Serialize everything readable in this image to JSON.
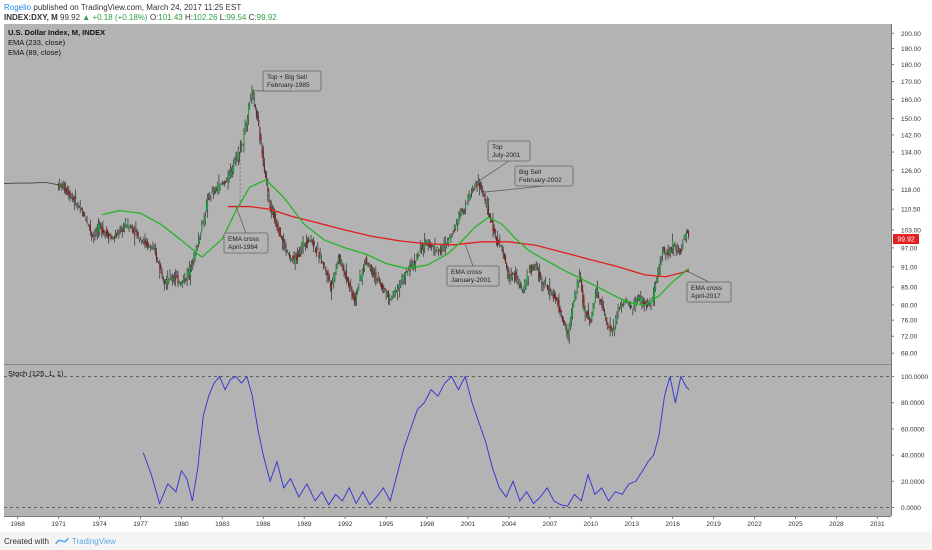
{
  "header": {
    "author": "Rogelio",
    "published": "published on TradingView.com, March 24, 2017 11:25 EST",
    "symbol_line": "INDEX:DXY, M",
    "last": "99.92",
    "change": "▲ +0.18 (+0.18%)",
    "o_label": "O:",
    "o_val": "101.43",
    "h_label": "H:",
    "h_val": "102.26",
    "l_label": "L:",
    "l_val": "99.54",
    "c_label": "C:",
    "c_val": "99.92"
  },
  "legend": {
    "title": "U.S. Dollar Index, M, INDEX",
    "ema1": "EMA (233, close)",
    "ema2": "EMA (89, close)",
    "stoch": "Stoch (125, 1, 1)"
  },
  "price_badge": "99.92",
  "footer": {
    "created": "Created with",
    "brand": "TradingView"
  },
  "colors": {
    "panel_bg": "#b3b3b3",
    "candle_up": "#1e9c3e",
    "candle_down": "#7a1d1d",
    "ema_233": "#e11f1f",
    "ema_89": "#27b427",
    "stoch": "#2f2fd6",
    "badge": "#e11f1f"
  },
  "annotations": [
    {
      "lines": [
        "Top + Big Sell",
        "February-1985"
      ]
    },
    {
      "lines": [
        "EMA cross",
        "April-1984"
      ]
    },
    {
      "lines": [
        "Top",
        "July-2001"
      ]
    },
    {
      "lines": [
        "Big Sell",
        "February-2002"
      ]
    },
    {
      "lines": [
        "EMA cross",
        "January-2001"
      ]
    },
    {
      "lines": [
        "EMA cross",
        "April-2017"
      ]
    }
  ],
  "chart_data": [
    {
      "type": "line",
      "title": "U.S. Dollar Index, M, INDEX",
      "scale": "log",
      "ylim": [
        66,
        205
      ],
      "xlim": [
        1967,
        2032
      ],
      "y_ticks": [
        68,
        72,
        76,
        80,
        85,
        91,
        97,
        103,
        110.5,
        118,
        126,
        134,
        142,
        150,
        160,
        170,
        180,
        190,
        200
      ],
      "y_tick_labels": [
        "68.00",
        "72.00",
        "76.00",
        "80.00",
        "85.00",
        "91.00",
        "97.00",
        "103.00",
        "110.50",
        "118.00",
        "126.00",
        "134.00",
        "142.00",
        "150.00",
        "160.00",
        "170.00",
        "180.00",
        "190.00",
        "200.00"
      ],
      "x_ticks": [
        1968,
        1971,
        1974,
        1977,
        1980,
        1983,
        1986,
        1989,
        1992,
        1995,
        1998,
        2001,
        2004,
        2007,
        2010,
        2013,
        2016,
        2019,
        2022,
        2025,
        2028,
        2031
      ],
      "series": [
        {
          "name": "INDEX:DXY",
          "x": [
            1967.0,
            1968.0,
            1969.0,
            1970.0,
            1971.0,
            1971.5,
            1972.0,
            1973.0,
            1973.5,
            1974.0,
            1975.0,
            1976.0,
            1976.5,
            1977.0,
            1978.0,
            1978.8,
            1979.5,
            1980.0,
            1980.5,
            1981.0,
            1981.7,
            1982.0,
            1982.7,
            1983.5,
            1984.0,
            1984.5,
            1985.15,
            1985.5,
            1986.0,
            1986.5,
            1987.0,
            1987.5,
            1988.0,
            1988.5,
            1989.0,
            1989.5,
            1990.0,
            1990.5,
            1991.0,
            1991.5,
            1992.0,
            1992.7,
            1993.0,
            1993.5,
            1994.0,
            1994.5,
            1995.3,
            1995.7,
            1996.0,
            1996.5,
            1997.0,
            1997.5,
            1998.0,
            1998.5,
            1999.0,
            1999.5,
            2000.0,
            2000.5,
            2000.9,
            2001.5,
            2001.7,
            2002.1,
            2002.5,
            2003.0,
            2003.5,
            2004.0,
            2004.5,
            2005.0,
            2005.5,
            2006.0,
            2006.5,
            2007.0,
            2007.5,
            2008.3,
            2008.6,
            2009.0,
            2009.2,
            2009.5,
            2010.0,
            2010.4,
            2010.8,
            2011.3,
            2011.7,
            2012.0,
            2012.5,
            2013.0,
            2013.5,
            2014.0,
            2014.5,
            2015.0,
            2015.3,
            2015.7,
            2016.0,
            2016.5,
            2016.9,
            2017.1,
            2017.2
          ],
          "values": [
            120.5,
            120.7,
            120.7,
            121.0,
            120.0,
            118.5,
            115.0,
            107.0,
            101.0,
            104.0,
            100.0,
            105.0,
            103.0,
            100.0,
            96.0,
            86.5,
            88.0,
            86.0,
            89.0,
            95.0,
            108.0,
            115.0,
            119.0,
            123.0,
            132.0,
            138.0,
            164.7,
            152.0,
            130.0,
            111.0,
            105.0,
            98.0,
            93.0,
            94.0,
            99.0,
            100.0,
            95.0,
            91.0,
            85.0,
            94.0,
            89.0,
            81.0,
            86.0,
            93.0,
            90.0,
            86.0,
            81.5,
            84.0,
            86.0,
            89.0,
            92.0,
            96.0,
            99.0,
            97.0,
            96.0,
            99.0,
            104.0,
            110.0,
            113.0,
            120.0,
            121.0,
            117.0,
            109.0,
            101.0,
            96.0,
            88.0,
            88.5,
            83.5,
            90.0,
            91.0,
            86.0,
            84.0,
            81.0,
            72.0,
            78.0,
            86.0,
            88.0,
            79.0,
            76.0,
            84.0,
            80.0,
            74.0,
            73.5,
            79.0,
            81.0,
            79.0,
            82.0,
            80.0,
            81.0,
            90.0,
            97.0,
            95.0,
            98.0,
            96.0,
            101.0,
            102.5,
            99.92
          ]
        },
        {
          "name": "EMA (233, close)",
          "x": [
            1983.4,
            1985.0,
            1986.5,
            1988.0,
            1990.0,
            1992.0,
            1994.0,
            1996.0,
            1998.0,
            2000.0,
            2002.0,
            2004.0,
            2006.0,
            2008.0,
            2010.0,
            2012.0,
            2014.0,
            2015.5,
            2017.2
          ],
          "values": [
            111.5,
            111.5,
            110.5,
            108.0,
            105.5,
            103.0,
            100.8,
            99.3,
            98.3,
            98.0,
            99.0,
            99.0,
            97.8,
            95.5,
            93.2,
            91.0,
            88.5,
            88.0,
            89.8
          ]
        },
        {
          "name": "EMA (89, close)",
          "x": [
            1974.2,
            1975.5,
            1977.0,
            1978.5,
            1980.0,
            1981.5,
            1983.0,
            1984.0,
            1985.0,
            1986.2,
            1987.5,
            1989.0,
            1990.5,
            1992.0,
            1993.5,
            1995.0,
            1996.5,
            1998.0,
            1999.5,
            2000.5,
            2001.5,
            2002.5,
            2003.5,
            2004.5,
            2005.5,
            2006.5,
            2008.0,
            2009.0,
            2010.0,
            2011.0,
            2012.0,
            2013.0,
            2014.0,
            2015.0,
            2016.0,
            2017.2
          ],
          "values": [
            108.5,
            110.0,
            109.0,
            105.0,
            99.5,
            94.0,
            100.0,
            110.0,
            119.0,
            122.0,
            115.0,
            105.0,
            99.5,
            97.0,
            95.0,
            92.0,
            90.5,
            91.5,
            95.0,
            99.0,
            104.0,
            107.5,
            105.0,
            100.0,
            96.0,
            93.5,
            90.0,
            88.0,
            86.0,
            84.0,
            82.0,
            80.5,
            80.0,
            82.5,
            86.5,
            90.5
          ]
        }
      ]
    },
    {
      "type": "line",
      "title": "Stoch (125, 1, 1)",
      "ylim": [
        -5,
        105
      ],
      "xlim": [
        1967,
        2032
      ],
      "y_ticks": [
        0,
        20,
        40,
        60,
        80,
        100
      ],
      "y_tick_labels": [
        "0.0000",
        "20.0000",
        "40.0000",
        "60.0000",
        "80.0000",
        "100.0000"
      ],
      "series": [
        {
          "name": "Stoch (125, 1, 1)",
          "x": [
            1977.2,
            1977.8,
            1978.4,
            1979.0,
            1979.6,
            1980.0,
            1980.4,
            1980.8,
            1981.2,
            1981.6,
            1982.0,
            1982.4,
            1982.8,
            1983.2,
            1983.6,
            1984.0,
            1984.4,
            1984.8,
            1985.2,
            1985.6,
            1986.0,
            1986.5,
            1987.0,
            1987.5,
            1988.0,
            1988.6,
            1989.2,
            1989.8,
            1990.3,
            1990.8,
            1991.3,
            1991.8,
            1992.3,
            1992.8,
            1993.3,
            1993.8,
            1994.3,
            1994.8,
            1995.3,
            1995.8,
            1996.3,
            1996.8,
            1997.3,
            1997.8,
            1998.3,
            1998.8,
            1999.3,
            1999.8,
            2000.3,
            2000.8,
            2001.3,
            2001.8,
            2002.3,
            2002.8,
            2003.3,
            2003.8,
            2004.3,
            2004.8,
            2005.3,
            2005.8,
            2006.3,
            2006.8,
            2007.3,
            2007.8,
            2008.3,
            2008.8,
            2009.3,
            2009.8,
            2010.3,
            2010.8,
            2011.3,
            2011.8,
            2012.3,
            2012.8,
            2013.3,
            2013.8,
            2014.2,
            2014.6,
            2015.0,
            2015.4,
            2015.8,
            2016.2,
            2016.6,
            2017.0,
            2017.2
          ],
          "values": [
            42,
            25,
            3,
            18,
            12,
            28,
            22,
            5,
            30,
            70,
            85,
            95,
            100,
            90,
            98,
            100,
            95,
            100,
            85,
            60,
            40,
            20,
            35,
            15,
            22,
            8,
            18,
            5,
            12,
            2,
            10,
            5,
            15,
            3,
            12,
            2,
            8,
            15,
            5,
            25,
            45,
            60,
            75,
            80,
            90,
            85,
            95,
            100,
            90,
            100,
            80,
            65,
            50,
            30,
            15,
            8,
            20,
            5,
            12,
            3,
            8,
            15,
            5,
            2,
            1,
            10,
            5,
            25,
            10,
            15,
            5,
            12,
            10,
            18,
            20,
            28,
            35,
            40,
            55,
            85,
            100,
            80,
            100,
            92,
            90
          ]
        }
      ]
    }
  ]
}
